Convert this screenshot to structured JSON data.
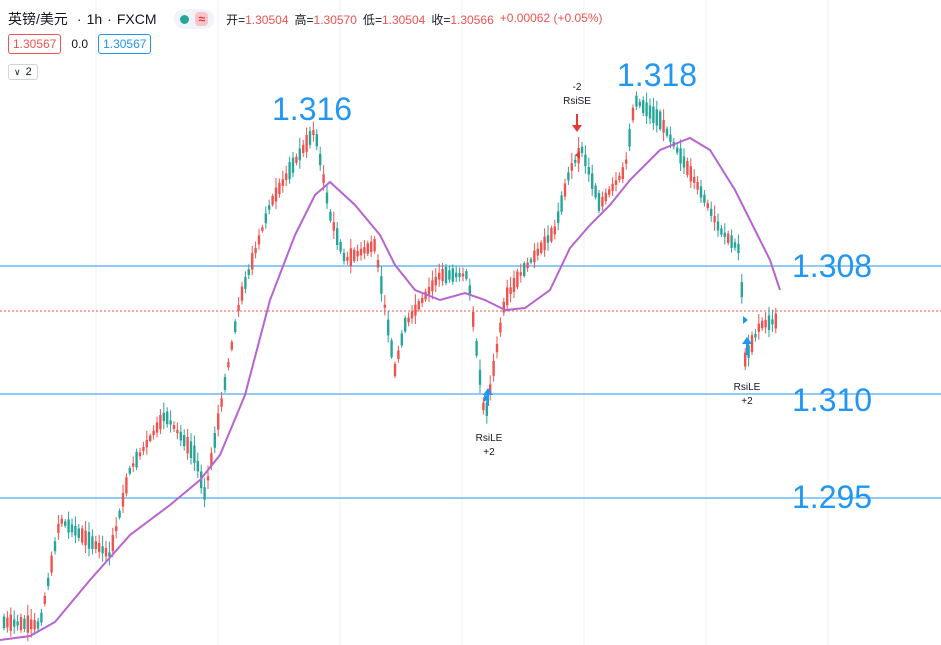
{
  "header": {
    "symbol": "英镑/美元",
    "interval": "1h",
    "source": "FXCM",
    "status_icon": "green-dot-icon",
    "wave_icon": "≈",
    "ohlc": {
      "open_label": "开",
      "open": "1.30504",
      "high_label": "高",
      "high": "1.30570",
      "low_label": "低",
      "low": "1.30504",
      "close_label": "收",
      "close": "1.30566",
      "change": "+0.00062 (+0.05%)"
    }
  },
  "prices": {
    "bid": "1.30567",
    "spread": "0.0",
    "ask": "1.30567"
  },
  "indicators_toggle": {
    "count": "2"
  },
  "chart_data": {
    "type": "candlestick",
    "colors": {
      "up": "#ef5350",
      "down": "#26a69a",
      "ma": "#b764d0",
      "level_line": "#2196f3",
      "annotation_text": "#2196f3"
    },
    "price_annotations": [
      {
        "text": "1.316"
      },
      {
        "text": "1.318"
      },
      {
        "text": "1.308"
      },
      {
        "text": "1.310"
      },
      {
        "text": "1.295"
      }
    ],
    "signals": [
      {
        "type": "sell",
        "lines": [
          "-2",
          "RsiSE"
        ]
      },
      {
        "type": "buy",
        "lines": [
          "RsiLE",
          "+2"
        ]
      },
      {
        "type": "buy",
        "lines": [
          "RsiLE",
          "+2"
        ]
      }
    ],
    "moving_average": {
      "color": "#b764d0"
    },
    "current_price_line": {
      "style": "dotted",
      "color": "#ef5350"
    },
    "grid": false
  }
}
